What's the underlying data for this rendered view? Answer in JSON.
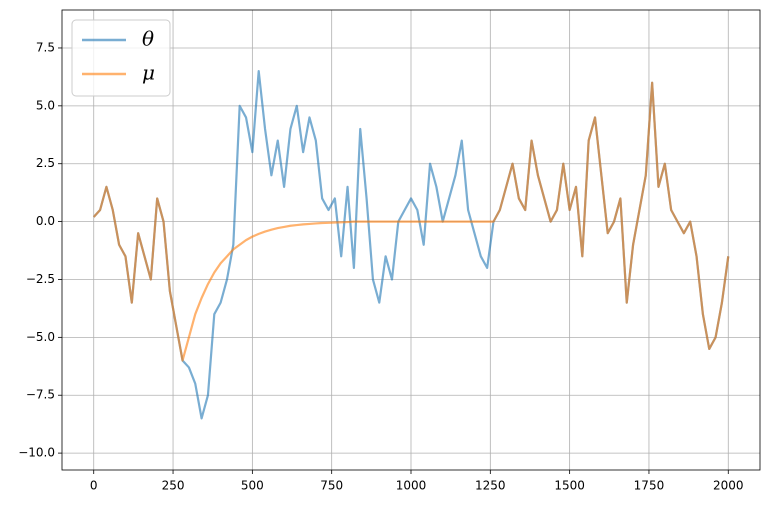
{
  "chart_data": {
    "type": "line",
    "x": [
      0,
      20,
      40,
      60,
      80,
      100,
      120,
      140,
      160,
      180,
      200,
      220,
      240,
      260,
      280,
      300,
      320,
      340,
      360,
      380,
      400,
      420,
      440,
      460,
      480,
      500,
      520,
      540,
      560,
      580,
      600,
      620,
      640,
      660,
      680,
      700,
      720,
      740,
      760,
      780,
      800,
      820,
      840,
      860,
      880,
      900,
      920,
      940,
      960,
      980,
      1000,
      1020,
      1040,
      1060,
      1080,
      1100,
      1120,
      1140,
      1160,
      1180,
      1200,
      1220,
      1240,
      1260,
      1280,
      1300,
      1320,
      1340,
      1360,
      1380,
      1400,
      1420,
      1440,
      1460,
      1480,
      1500,
      1520,
      1540,
      1560,
      1580,
      1600,
      1620,
      1640,
      1660,
      1680,
      1700,
      1720,
      1740,
      1760,
      1780,
      1800,
      1820,
      1840,
      1860,
      1880,
      1900,
      1920,
      1940,
      1960,
      1980,
      2000
    ],
    "series": [
      {
        "name": "θ",
        "color": "#1f77b4",
        "values": [
          0.2,
          0.5,
          1.5,
          0.5,
          -1,
          -1.5,
          -3.5,
          -0.5,
          -1.5,
          -2.5,
          1.0,
          0,
          -3,
          -4.5,
          -6,
          -6.3,
          -7,
          -8.5,
          -7.5,
          -4,
          -3.5,
          -2.5,
          -1,
          5,
          4.5,
          3,
          6.5,
          4,
          2,
          3.5,
          1.5,
          4,
          5,
          3,
          4.5,
          3.5,
          1,
          0.5,
          1,
          -1.5,
          1.5,
          -2,
          4,
          1,
          -2.5,
          -3.5,
          -1.5,
          -2.5,
          0,
          0.5,
          1,
          0.5,
          -1,
          2.5,
          1.5,
          0,
          1,
          2,
          3.5,
          0.5,
          -0.5,
          -1.5,
          -2,
          0,
          0.5,
          1.5,
          2.5,
          1,
          0.5,
          3.5,
          2,
          1,
          0,
          0.5,
          2.5,
          0.5,
          1.5,
          -1.5,
          3.5,
          4.5,
          2,
          -0.5,
          0,
          1,
          -3.5,
          -1,
          0.5,
          2,
          6,
          1.5,
          2.5,
          0.5,
          0,
          -0.5,
          0,
          -1.5,
          -4,
          -5.5,
          -5,
          -3.5,
          -1.5
        ]
      },
      {
        "name": "μ",
        "color": "#ff7f0e",
        "values": [
          0.2,
          0.5,
          1.5,
          0.5,
          -1,
          -1.5,
          -3.5,
          -0.5,
          -1.5,
          -2.5,
          1.0,
          0,
          -3,
          -4.5,
          -6,
          -5,
          -4,
          -3.3,
          -2.7,
          -2.2,
          -1.8,
          -1.5,
          -1.2,
          -1.0,
          -0.8,
          -0.65,
          -0.53,
          -0.43,
          -0.35,
          -0.28,
          -0.23,
          -0.18,
          -0.15,
          -0.12,
          -0.1,
          -0.08,
          -0.06,
          -0.05,
          -0.04,
          -0.03,
          -0.02,
          0,
          0,
          0,
          0,
          0,
          0,
          0,
          0,
          0,
          0,
          0,
          0,
          0,
          0,
          0,
          0,
          0,
          0,
          0,
          0,
          0,
          0,
          0,
          0.5,
          1.5,
          2.5,
          1,
          0.5,
          3.5,
          2,
          1,
          0,
          0.5,
          2.5,
          0.5,
          1.5,
          -1.5,
          3.5,
          4.5,
          2,
          -0.5,
          0,
          1,
          -3.5,
          -1,
          0.5,
          2,
          6,
          1.5,
          2.5,
          0.5,
          0,
          -0.5,
          0,
          -1.5,
          -4,
          -5.5,
          -5,
          -3.5,
          -1.5
        ]
      }
    ],
    "xlim": [
      -100,
      2100
    ],
    "ylim": [
      -10.73,
      9.14
    ],
    "xticks": [
      0,
      250,
      500,
      750,
      1000,
      1250,
      1500,
      1750,
      2000
    ],
    "yticks": [
      {
        "value": -10,
        "label": "−10.0"
      },
      {
        "value": -7.5,
        "label": "−7.5"
      },
      {
        "value": -5,
        "label": "−5.0"
      },
      {
        "value": -2.5,
        "label": "−2.5"
      },
      {
        "value": 0,
        "label": "0.0"
      },
      {
        "value": 2.5,
        "label": "2.5"
      },
      {
        "value": 5,
        "label": "5.0"
      },
      {
        "value": 7.5,
        "label": "7.5"
      }
    ],
    "grid": true,
    "legend": "upper-left"
  }
}
